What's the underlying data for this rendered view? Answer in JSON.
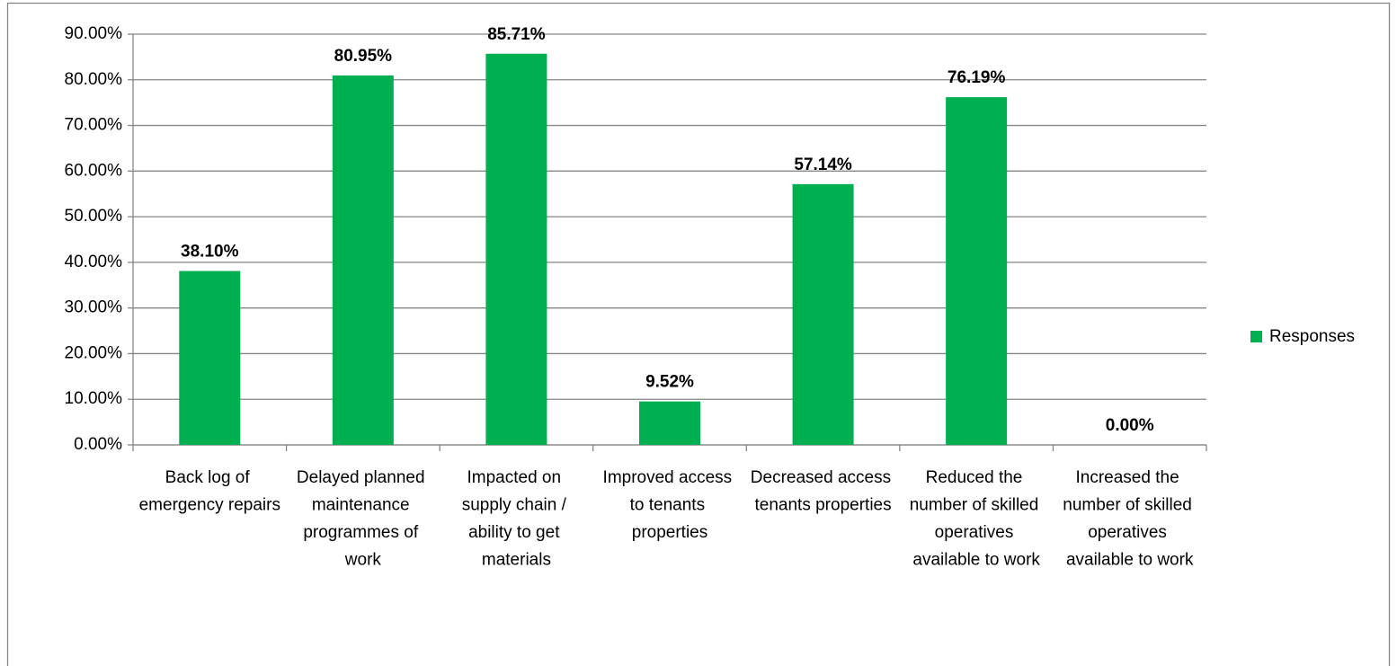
{
  "chart_data": {
    "type": "bar",
    "categories": [
      "Back log of emergency repairs",
      "Delayed planned maintenance programmes of work",
      "Impacted on supply chain / ability to get materials",
      "Improved access to tenants properties",
      "Decreased access tenants properties",
      "Reduced the number of skilled operatives available to work",
      "Increased the number of skilled operatives available to work"
    ],
    "series": [
      {
        "name": "Responses",
        "color": "#00b050",
        "values": [
          38.1,
          80.95,
          85.71,
          9.52,
          57.14,
          76.19,
          0
        ],
        "value_labels": [
          "38.10%",
          "80.95%",
          "85.71%",
          "9.52%",
          "57.14%",
          "76.19%",
          "0.00%"
        ]
      }
    ],
    "ylim": [
      0,
      90
    ],
    "yticks": [
      {
        "value": 0,
        "label": "0.00%"
      },
      {
        "value": 10,
        "label": "10.00%"
      },
      {
        "value": 20,
        "label": "20.00%"
      },
      {
        "value": 30,
        "label": "30.00%"
      },
      {
        "value": 40,
        "label": "40.00%"
      },
      {
        "value": 50,
        "label": "50.00%"
      },
      {
        "value": 60,
        "label": "60.00%"
      },
      {
        "value": 70,
        "label": "70.00%"
      },
      {
        "value": 80,
        "label": "80.00%"
      },
      {
        "value": 90,
        "label": "90.00%"
      }
    ],
    "grid": true,
    "legend": "right"
  }
}
